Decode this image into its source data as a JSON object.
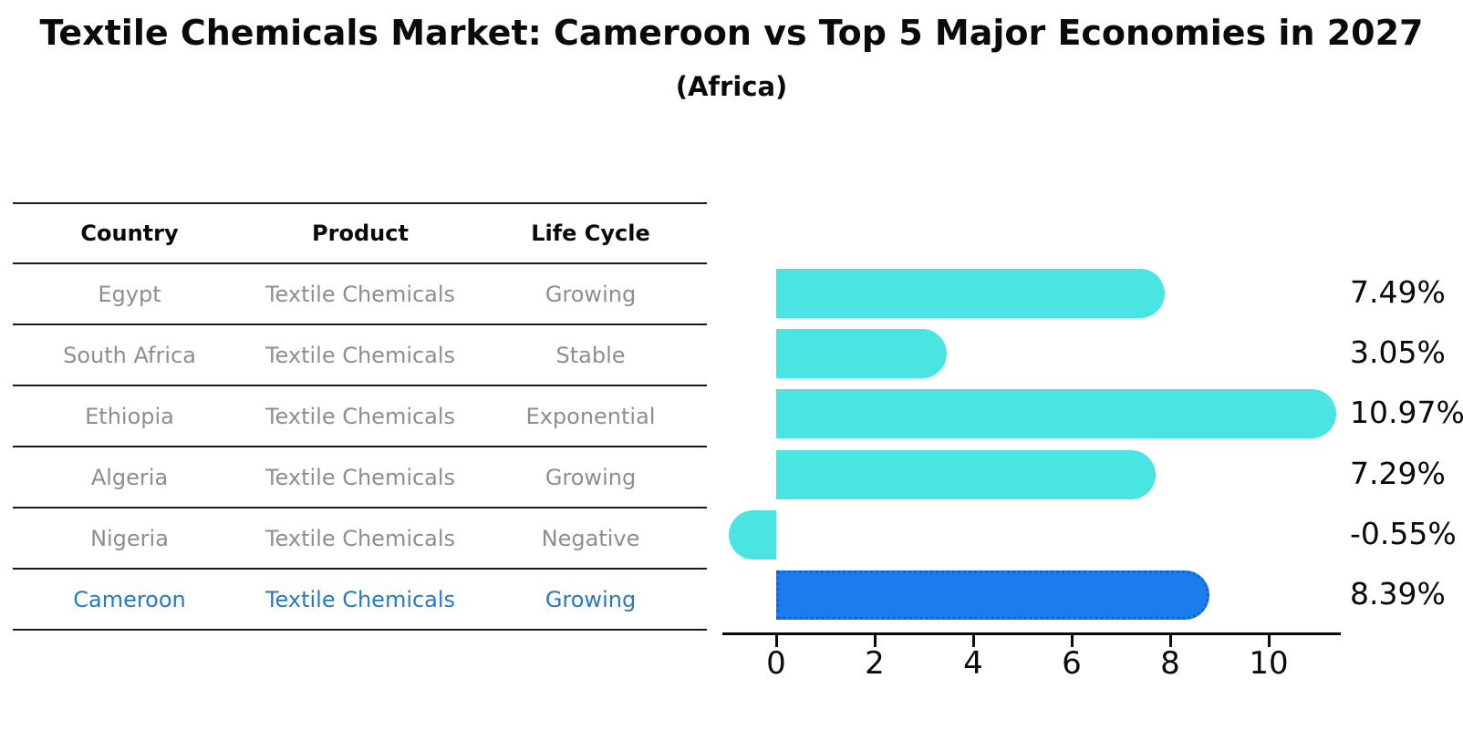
{
  "header": {
    "title": "Textile Chemicals Market: Cameroon vs Top 5 Major Economies in 2027",
    "subtitle": "(Africa)"
  },
  "table": {
    "columns": [
      "Country",
      "Product",
      "Life Cycle"
    ],
    "rows": [
      {
        "country": "Egypt",
        "product": "Textile Chemicals",
        "life_cycle": "Growing"
      },
      {
        "country": "South Africa",
        "product": "Textile Chemicals",
        "life_cycle": "Stable"
      },
      {
        "country": "Ethiopia",
        "product": "Textile Chemicals",
        "life_cycle": "Exponential"
      },
      {
        "country": "Algeria",
        "product": "Textile Chemicals",
        "life_cycle": "Growing"
      },
      {
        "country": "Nigeria",
        "product": "Textile Chemicals",
        "life_cycle": "Negative"
      },
      {
        "country": "Cameroon",
        "product": "Textile Chemicals",
        "life_cycle": "Growing"
      }
    ],
    "highlight_row": "Cameroon"
  },
  "chart_data": {
    "type": "bar",
    "orientation": "horizontal",
    "title": "Textile Chemicals Market: Cameroon vs Top 5 Major Economies in 2027",
    "subtitle": "(Africa)",
    "categories": [
      "Egypt",
      "South Africa",
      "Ethiopia",
      "Algeria",
      "Nigeria",
      "Cameroon"
    ],
    "values": [
      7.49,
      3.05,
      10.97,
      7.29,
      -0.55,
      8.39
    ],
    "value_labels": [
      "7.49%",
      "3.05%",
      "10.97%",
      "7.29%",
      "-0.55%",
      "8.39%"
    ],
    "unit": "percent",
    "x_ticks": [
      0,
      2,
      4,
      6,
      8,
      10
    ],
    "xlim": [
      -1.1,
      11.4
    ],
    "grid": false,
    "legend": false,
    "bar_color": "#4ae4e2",
    "highlight_color": "#1d7ceb",
    "highlight_border_color": "#0c64d8",
    "highlight_index": 5,
    "highlight_category": "Cameroon",
    "text_gray": "#8e8e8e",
    "highlight_text_color": "#2779c4"
  }
}
